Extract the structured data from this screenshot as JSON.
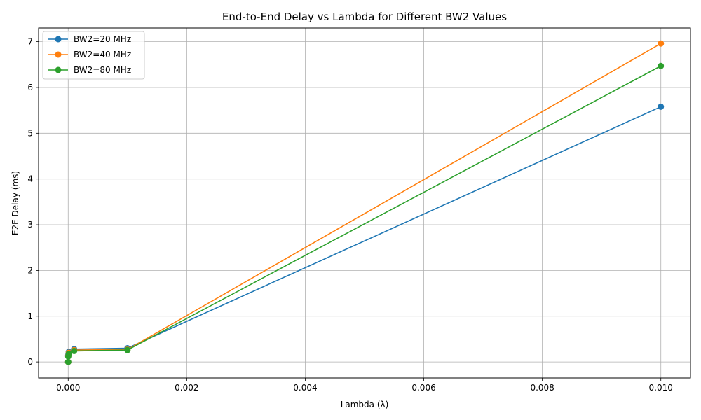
{
  "chart_data": {
    "type": "line",
    "title": "End-to-End Delay vs Lambda for Different BW2 Values",
    "xlabel": "Lambda (λ)",
    "ylabel": "E2E Delay (ms)",
    "xlim": [
      -0.0005,
      0.0105
    ],
    "ylim": [
      -0.35,
      7.3
    ],
    "grid": true,
    "legend_position": "top-left",
    "x_ticks": [
      {
        "value": 0.0,
        "label": "0.000"
      },
      {
        "value": 0.002,
        "label": "0.002"
      },
      {
        "value": 0.004,
        "label": "0.004"
      },
      {
        "value": 0.006,
        "label": "0.006"
      },
      {
        "value": 0.008,
        "label": "0.008"
      },
      {
        "value": 0.01,
        "label": "0.010"
      }
    ],
    "y_ticks": [
      {
        "value": 0,
        "label": "0"
      },
      {
        "value": 1,
        "label": "1"
      },
      {
        "value": 2,
        "label": "2"
      },
      {
        "value": 3,
        "label": "3"
      },
      {
        "value": 4,
        "label": "4"
      },
      {
        "value": 5,
        "label": "5"
      },
      {
        "value": 6,
        "label": "6"
      },
      {
        "value": 7,
        "label": "7"
      }
    ],
    "x": [
      0.0,
      1e-06,
      1e-05,
      0.0001,
      0.001,
      0.01
    ],
    "series": [
      {
        "name": "BW2=20 MHz",
        "color": "#1f77b4",
        "values": [
          0.0,
          0.15,
          0.22,
          0.28,
          0.3,
          5.58
        ]
      },
      {
        "name": "BW2=40 MHz",
        "color": "#ff7f0e",
        "values": [
          0.0,
          0.13,
          0.2,
          0.26,
          0.27,
          6.96
        ]
      },
      {
        "name": "BW2=80 MHz",
        "color": "#2ca02c",
        "values": [
          0.0,
          0.12,
          0.18,
          0.24,
          0.26,
          6.47
        ]
      }
    ]
  }
}
